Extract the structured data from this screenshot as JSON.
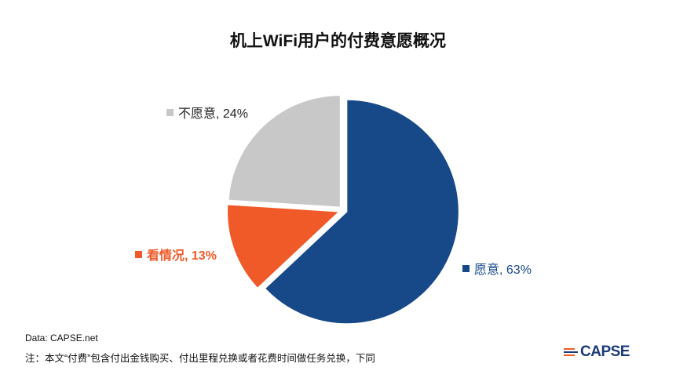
{
  "chart_data": {
    "type": "pie",
    "title": "机上WiFi用户的付费意愿概况",
    "slices": [
      {
        "label": "愿意",
        "value": 63,
        "display": "愿意, 63%",
        "color": "#174888"
      },
      {
        "label": "看情况",
        "value": 13,
        "display": "看情况, 13%",
        "color": "#f05a28"
      },
      {
        "label": "不愿意",
        "value": 24,
        "display": "不愿意, 24%",
        "color": "#c8c8c8"
      }
    ],
    "start_angle": "top",
    "direction": "clockwise"
  },
  "footer": {
    "source": "Data: CAPSE.net",
    "note": "注：本文“付费”包含付出金钱购买、付出里程兑换或者花费时间做任务兑换，下同"
  },
  "logo": {
    "text": "CAPSE"
  }
}
